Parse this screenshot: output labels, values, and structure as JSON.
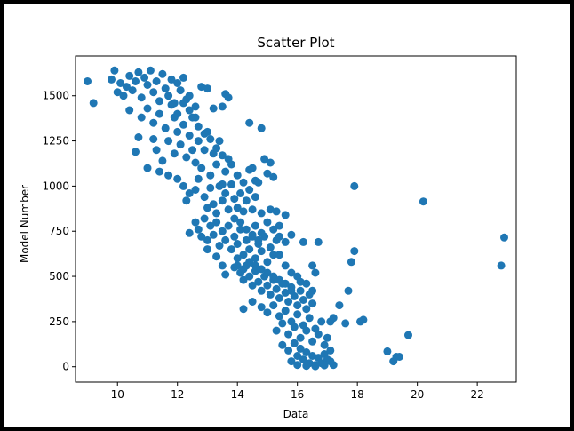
{
  "figure": {
    "background": "#ffffff",
    "frame_color": "#000000"
  },
  "chart_data": {
    "type": "scatter",
    "title": "Scatter Plot",
    "xlabel": "Data",
    "ylabel": "Model Number",
    "xlim": [
      8.6,
      23.3
    ],
    "ylim": [
      -85,
      1720
    ],
    "x_ticks": [
      10,
      12,
      14,
      16,
      18,
      20,
      22
    ],
    "y_ticks": [
      0,
      250,
      500,
      750,
      1000,
      1250,
      1500
    ],
    "grid": false,
    "legend": "none",
    "marker_color": "#1f77b4",
    "points": [
      [
        9.0,
        1580
      ],
      [
        9.2,
        1460
      ],
      [
        9.8,
        1590
      ],
      [
        9.9,
        1640
      ],
      [
        10.0,
        1520
      ],
      [
        10.1,
        1570
      ],
      [
        10.2,
        1500
      ],
      [
        10.3,
        1550
      ],
      [
        10.4,
        1610
      ],
      [
        10.5,
        1530
      ],
      [
        10.6,
        1580
      ],
      [
        10.7,
        1630
      ],
      [
        10.8,
        1490
      ],
      [
        10.9,
        1600
      ],
      [
        11.0,
        1560
      ],
      [
        11.1,
        1640
      ],
      [
        11.2,
        1520
      ],
      [
        11.3,
        1580
      ],
      [
        11.4,
        1470
      ],
      [
        11.5,
        1620
      ],
      [
        11.6,
        1540
      ],
      [
        11.7,
        1500
      ],
      [
        11.8,
        1590
      ],
      [
        11.9,
        1460
      ],
      [
        12.0,
        1570
      ],
      [
        12.1,
        1530
      ],
      [
        12.2,
        1600
      ],
      [
        12.3,
        1480
      ],
      [
        10.4,
        1420
      ],
      [
        10.8,
        1380
      ],
      [
        11.0,
        1430
      ],
      [
        11.2,
        1350
      ],
      [
        11.4,
        1400
      ],
      [
        11.6,
        1320
      ],
      [
        11.8,
        1450
      ],
      [
        12.0,
        1400
      ],
      [
        12.2,
        1340
      ],
      [
        12.4,
        1420
      ],
      [
        12.6,
        1380
      ],
      [
        12.8,
        1550
      ],
      [
        13.0,
        1540
      ],
      [
        13.2,
        1430
      ],
      [
        13.5,
        1440
      ],
      [
        13.6,
        1510
      ],
      [
        13.7,
        1490
      ],
      [
        10.7,
        1270
      ],
      [
        10.6,
        1190
      ],
      [
        11.2,
        1260
      ],
      [
        11.3,
        1200
      ],
      [
        11.5,
        1140
      ],
      [
        11.7,
        1250
      ],
      [
        11.9,
        1180
      ],
      [
        12.0,
        1300
      ],
      [
        12.1,
        1230
      ],
      [
        12.3,
        1160
      ],
      [
        12.4,
        1280
      ],
      [
        12.5,
        1200
      ],
      [
        12.6,
        1130
      ],
      [
        12.7,
        1250
      ],
      [
        12.8,
        1100
      ],
      [
        12.9,
        1200
      ],
      [
        13.0,
        1300
      ],
      [
        13.1,
        1060
      ],
      [
        13.2,
        1180
      ],
      [
        13.3,
        1120
      ],
      [
        13.4,
        1250
      ],
      [
        13.5,
        1010
      ],
      [
        13.6,
        1080
      ],
      [
        13.7,
        1150
      ],
      [
        11.0,
        1100
      ],
      [
        11.4,
        1080
      ],
      [
        11.7,
        1060
      ],
      [
        12.0,
        1040
      ],
      [
        12.2,
        1000
      ],
      [
        12.3,
        920
      ],
      [
        12.4,
        960
      ],
      [
        12.6,
        980
      ],
      [
        12.7,
        1040
      ],
      [
        12.9,
        940
      ],
      [
        13.0,
        880
      ],
      [
        13.1,
        990
      ],
      [
        13.2,
        900
      ],
      [
        13.3,
        850
      ],
      [
        13.4,
        1000
      ],
      [
        13.5,
        920
      ],
      [
        13.6,
        960
      ],
      [
        13.7,
        870
      ],
      [
        13.8,
        1010
      ],
      [
        13.9,
        930
      ],
      [
        14.0,
        880
      ],
      [
        14.1,
        960
      ],
      [
        14.2,
        860
      ],
      [
        14.3,
        920
      ],
      [
        14.4,
        1090
      ],
      [
        14.5,
        1100
      ],
      [
        14.6,
        1030
      ],
      [
        14.7,
        1020
      ],
      [
        14.9,
        1150
      ],
      [
        15.0,
        1070
      ],
      [
        15.1,
        1130
      ],
      [
        15.2,
        1050
      ],
      [
        14.4,
        1350
      ],
      [
        14.8,
        1320
      ],
      [
        12.6,
        800
      ],
      [
        12.7,
        760
      ],
      [
        12.9,
        820
      ],
      [
        13.0,
        700
      ],
      [
        13.1,
        780
      ],
      [
        13.2,
        730
      ],
      [
        13.3,
        800
      ],
      [
        13.4,
        670
      ],
      [
        13.5,
        750
      ],
      [
        13.6,
        700
      ],
      [
        13.7,
        780
      ],
      [
        13.8,
        650
      ],
      [
        13.9,
        720
      ],
      [
        14.0,
        680
      ],
      [
        14.1,
        760
      ],
      [
        14.2,
        620
      ],
      [
        14.3,
        700
      ],
      [
        14.4,
        650
      ],
      [
        14.5,
        730
      ],
      [
        14.6,
        600
      ],
      [
        14.7,
        680
      ],
      [
        14.8,
        640
      ],
      [
        14.9,
        720
      ],
      [
        15.0,
        580
      ],
      [
        15.1,
        660
      ],
      [
        15.2,
        620
      ],
      [
        15.3,
        700
      ],
      [
        14.5,
        870
      ],
      [
        14.8,
        850
      ],
      [
        15.1,
        870
      ],
      [
        15.3,
        860
      ],
      [
        15.6,
        840
      ],
      [
        15.4,
        780
      ],
      [
        15.8,
        730
      ],
      [
        16.2,
        690
      ],
      [
        12.4,
        740
      ],
      [
        12.8,
        720
      ],
      [
        13.0,
        650
      ],
      [
        13.3,
        610
      ],
      [
        13.5,
        560
      ],
      [
        13.6,
        510
      ],
      [
        13.9,
        550
      ],
      [
        14.0,
        600
      ],
      [
        14.1,
        520
      ],
      [
        14.2,
        480
      ],
      [
        14.3,
        560
      ],
      [
        14.4,
        500
      ],
      [
        14.5,
        450
      ],
      [
        14.6,
        530
      ],
      [
        14.7,
        470
      ],
      [
        14.8,
        420
      ],
      [
        14.9,
        500
      ],
      [
        15.0,
        450
      ],
      [
        15.1,
        400
      ],
      [
        15.2,
        480
      ],
      [
        15.3,
        430
      ],
      [
        15.4,
        380
      ],
      [
        15.5,
        460
      ],
      [
        15.6,
        410
      ],
      [
        15.7,
        360
      ],
      [
        15.8,
        440
      ],
      [
        15.9,
        390
      ],
      [
        16.0,
        340
      ],
      [
        16.1,
        420
      ],
      [
        16.2,
        370
      ],
      [
        16.3,
        320
      ],
      [
        16.4,
        400
      ],
      [
        16.5,
        350
      ],
      [
        14.2,
        320
      ],
      [
        14.5,
        360
      ],
      [
        14.8,
        330
      ],
      [
        15.0,
        300
      ],
      [
        15.2,
        340
      ],
      [
        15.4,
        280
      ],
      [
        15.6,
        310
      ],
      [
        15.8,
        250
      ],
      [
        16.0,
        290
      ],
      [
        16.2,
        230
      ],
      [
        16.4,
        270
      ],
      [
        16.6,
        210
      ],
      [
        16.8,
        250
      ],
      [
        15.3,
        200
      ],
      [
        15.5,
        240
      ],
      [
        15.7,
        180
      ],
      [
        15.9,
        220
      ],
      [
        16.1,
        160
      ],
      [
        16.3,
        200
      ],
      [
        16.5,
        140
      ],
      [
        16.7,
        180
      ],
      [
        16.9,
        120
      ],
      [
        17.0,
        160
      ],
      [
        15.5,
        120
      ],
      [
        15.7,
        90
      ],
      [
        15.9,
        130
      ],
      [
        16.0,
        60
      ],
      [
        16.1,
        100
      ],
      [
        16.2,
        40
      ],
      [
        16.3,
        80
      ],
      [
        16.4,
        20
      ],
      [
        16.5,
        60
      ],
      [
        16.6,
        10
      ],
      [
        16.7,
        50
      ],
      [
        16.8,
        20
      ],
      [
        16.9,
        70
      ],
      [
        17.0,
        40
      ],
      [
        17.1,
        90
      ],
      [
        17.2,
        10
      ],
      [
        16.0,
        10
      ],
      [
        16.3,
        5
      ],
      [
        16.6,
        3
      ],
      [
        16.9,
        8
      ],
      [
        17.1,
        30
      ],
      [
        15.8,
        30
      ],
      [
        16.5,
        560
      ],
      [
        16.6,
        520
      ],
      [
        16.7,
        690
      ],
      [
        16.5,
        420
      ],
      [
        17.1,
        250
      ],
      [
        17.2,
        270
      ],
      [
        17.4,
        340
      ],
      [
        17.6,
        240
      ],
      [
        17.7,
        420
      ],
      [
        17.8,
        580
      ],
      [
        17.9,
        640
      ],
      [
        17.9,
        1000
      ],
      [
        18.1,
        250
      ],
      [
        18.2,
        260
      ],
      [
        19.0,
        85
      ],
      [
        19.2,
        30
      ],
      [
        19.3,
        55
      ],
      [
        19.4,
        55
      ],
      [
        19.7,
        175
      ],
      [
        20.2,
        915
      ],
      [
        22.8,
        560
      ],
      [
        22.9,
        715
      ],
      [
        16.0,
        500
      ],
      [
        16.3,
        460
      ],
      [
        15.6,
        560
      ],
      [
        15.8,
        520
      ],
      [
        16.1,
        470
      ],
      [
        15.4,
        620
      ],
      [
        15.6,
        690
      ],
      [
        14.6,
        780
      ],
      [
        14.8,
        740
      ],
      [
        15.0,
        800
      ],
      [
        15.2,
        760
      ],
      [
        15.4,
        720
      ],
      [
        12.5,
        1380
      ],
      [
        12.7,
        1330
      ],
      [
        12.9,
        1290
      ],
      [
        13.1,
        1260
      ],
      [
        13.3,
        1210
      ],
      [
        13.5,
        1170
      ],
      [
        12.2,
        1460
      ],
      [
        12.4,
        1500
      ],
      [
        12.6,
        1440
      ],
      [
        11.9,
        1380
      ],
      [
        13.8,
        1120
      ],
      [
        14.0,
        1060
      ],
      [
        14.2,
        1020
      ],
      [
        14.4,
        980
      ],
      [
        14.6,
        940
      ],
      [
        13.9,
        820
      ],
      [
        14.1,
        800
      ],
      [
        14.3,
        760
      ],
      [
        14.5,
        720
      ],
      [
        14.7,
        700
      ],
      [
        14.0,
        560
      ],
      [
        14.2,
        540
      ],
      [
        14.4,
        580
      ],
      [
        14.6,
        560
      ],
      [
        14.8,
        540
      ],
      [
        15.0,
        520
      ],
      [
        15.2,
        500
      ],
      [
        15.4,
        480
      ],
      [
        15.6,
        460
      ],
      [
        15.8,
        420
      ]
    ]
  }
}
